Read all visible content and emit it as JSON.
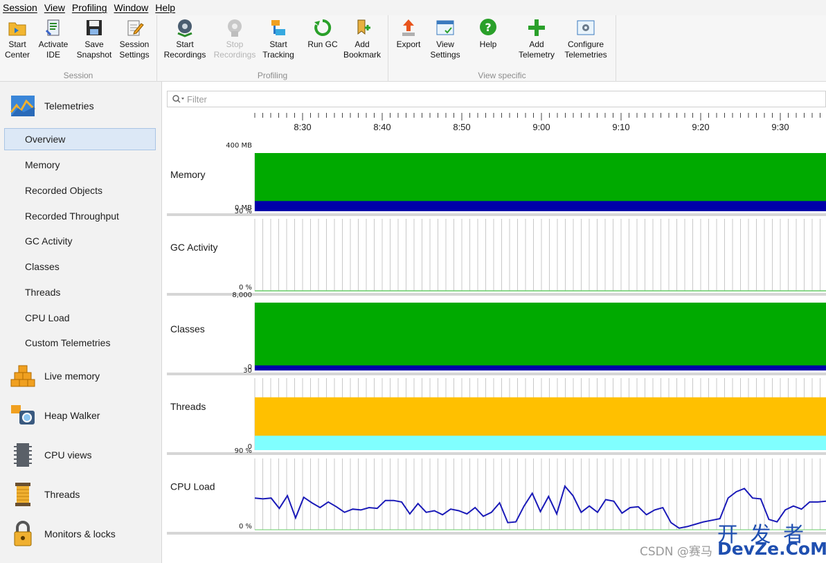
{
  "menubar": {
    "items": [
      "Session",
      "View",
      "Profiling",
      "Window",
      "Help"
    ]
  },
  "toolbar": {
    "groups": [
      {
        "label": "Session",
        "buttons": [
          {
            "line1": "Start",
            "line2": "Center",
            "icon": "folder-arrow-icon"
          },
          {
            "line1": "Activate",
            "line2": "IDE",
            "icon": "ide-icon"
          },
          {
            "line1": "Save",
            "line2": "Snapshot",
            "icon": "floppy-disk-icon"
          },
          {
            "line1": "Session",
            "line2": "Settings",
            "icon": "settings-pencil-icon"
          }
        ]
      },
      {
        "label": "Profiling",
        "buttons": [
          {
            "line1": "Start",
            "line2": "Recordings",
            "icon": "record-gear-icon"
          },
          {
            "line1": "Stop",
            "line2": "Recordings",
            "icon": "stop-gear-icon",
            "disabled": true
          },
          {
            "line1": "Start",
            "line2": "Tracking",
            "icon": "tracking-icon"
          },
          {
            "line1": "Run GC",
            "line2": "",
            "icon": "recycle-icon"
          },
          {
            "line1": "Add",
            "line2": "Bookmark",
            "icon": "bookmark-icon"
          }
        ]
      },
      {
        "label": "View specific",
        "buttons": [
          {
            "line1": "Export",
            "line2": "",
            "icon": "export-arrow-icon"
          },
          {
            "line1": "View",
            "line2": "Settings",
            "icon": "view-settings-icon"
          },
          {
            "line1": "Help",
            "line2": "",
            "icon": "help-icon"
          },
          {
            "line1": "Add",
            "line2": "Telemetry",
            "icon": "plus-icon"
          },
          {
            "line1": "Configure",
            "line2": "Telemetries",
            "icon": "configure-gear-icon"
          }
        ]
      }
    ]
  },
  "sidebar": {
    "telemetries_title": "Telemetries",
    "telemetry_items": [
      "Overview",
      "Memory",
      "Recorded Objects",
      "Recorded Throughput",
      "GC Activity",
      "Classes",
      "Threads",
      "CPU Load",
      "Custom Telemetries"
    ],
    "selected": "Overview",
    "sections": [
      {
        "label": "Live memory",
        "icon": "cubes-icon"
      },
      {
        "label": "Heap Walker",
        "icon": "camera-icon"
      },
      {
        "label": "CPU views",
        "icon": "cpu-chip-icon"
      },
      {
        "label": "Threads",
        "icon": "thread-spool-icon"
      },
      {
        "label": "Monitors & locks",
        "icon": "padlock-icon"
      }
    ]
  },
  "filter": {
    "placeholder": "Filter"
  },
  "chart_data": {
    "type": "area",
    "x_ticks": [
      "8:30",
      "8:40",
      "8:50",
      "9:00",
      "9:10",
      "9:20",
      "9:30"
    ],
    "panels": [
      {
        "name": "Memory",
        "ymax_label": "400 MB",
        "ymin_label": "0 MB",
        "ylim": [
          0,
          400
        ],
        "series": [
          {
            "color": "#00aa00",
            "values": [
              400,
              400
            ]
          },
          {
            "color": "#0000aa",
            "values": [
              70,
              70
            ]
          }
        ]
      },
      {
        "name": "GC Activity",
        "ymax_label": "30 %",
        "ymin_label": "0 %",
        "ylim": [
          0,
          30
        ],
        "series": [
          {
            "color": "#00aa00",
            "values": [
              0,
              0
            ]
          }
        ]
      },
      {
        "name": "Classes",
        "ymax_label": "8,000",
        "ymin_label": "0",
        "ylim": [
          0,
          8000
        ],
        "series": [
          {
            "color": "#00aa00",
            "values": [
              8000,
              8000
            ]
          },
          {
            "color": "#0000aa",
            "values": [
              600,
              600
            ]
          }
        ]
      },
      {
        "name": "Threads",
        "ymax_label": "30",
        "ymin_label": "0",
        "ylim": [
          0,
          30
        ],
        "series": [
          {
            "color": "#ffc000",
            "values": [
              22,
              22
            ]
          },
          {
            "color": "#80ffff",
            "values": [
              6,
              6
            ]
          }
        ]
      },
      {
        "name": "CPU Load",
        "ymax_label": "90 %",
        "ymin_label": "0 %",
        "ylim": [
          0,
          90
        ],
        "type": "line",
        "series": [
          {
            "color": "#1a1ab8",
            "values": [
              40,
              39,
              40,
              27,
              43,
              15,
              41,
              34,
              28,
              35,
              29,
              22,
              26,
              25,
              28,
              27,
              37,
              37,
              35,
              20,
              33,
              22,
              24,
              19,
              26,
              24,
              20,
              28,
              17,
              22,
              34,
              9,
              10,
              30,
              46,
              23,
              42,
              20,
              55,
              43,
              22,
              30,
              22,
              38,
              36,
              21,
              28,
              29,
              19,
              25,
              28,
              9,
              2,
              4,
              7,
              10,
              12,
              14,
              40,
              48,
              52,
              40,
              39,
              13,
              10,
              25,
              30,
              26,
              35,
              35,
              36
            ]
          }
        ]
      }
    ]
  },
  "watermark": {
    "csdn": "CSDN @赛马",
    "brand_top": "开 发 者",
    "brand_bottom": "DevZe.CoM"
  }
}
